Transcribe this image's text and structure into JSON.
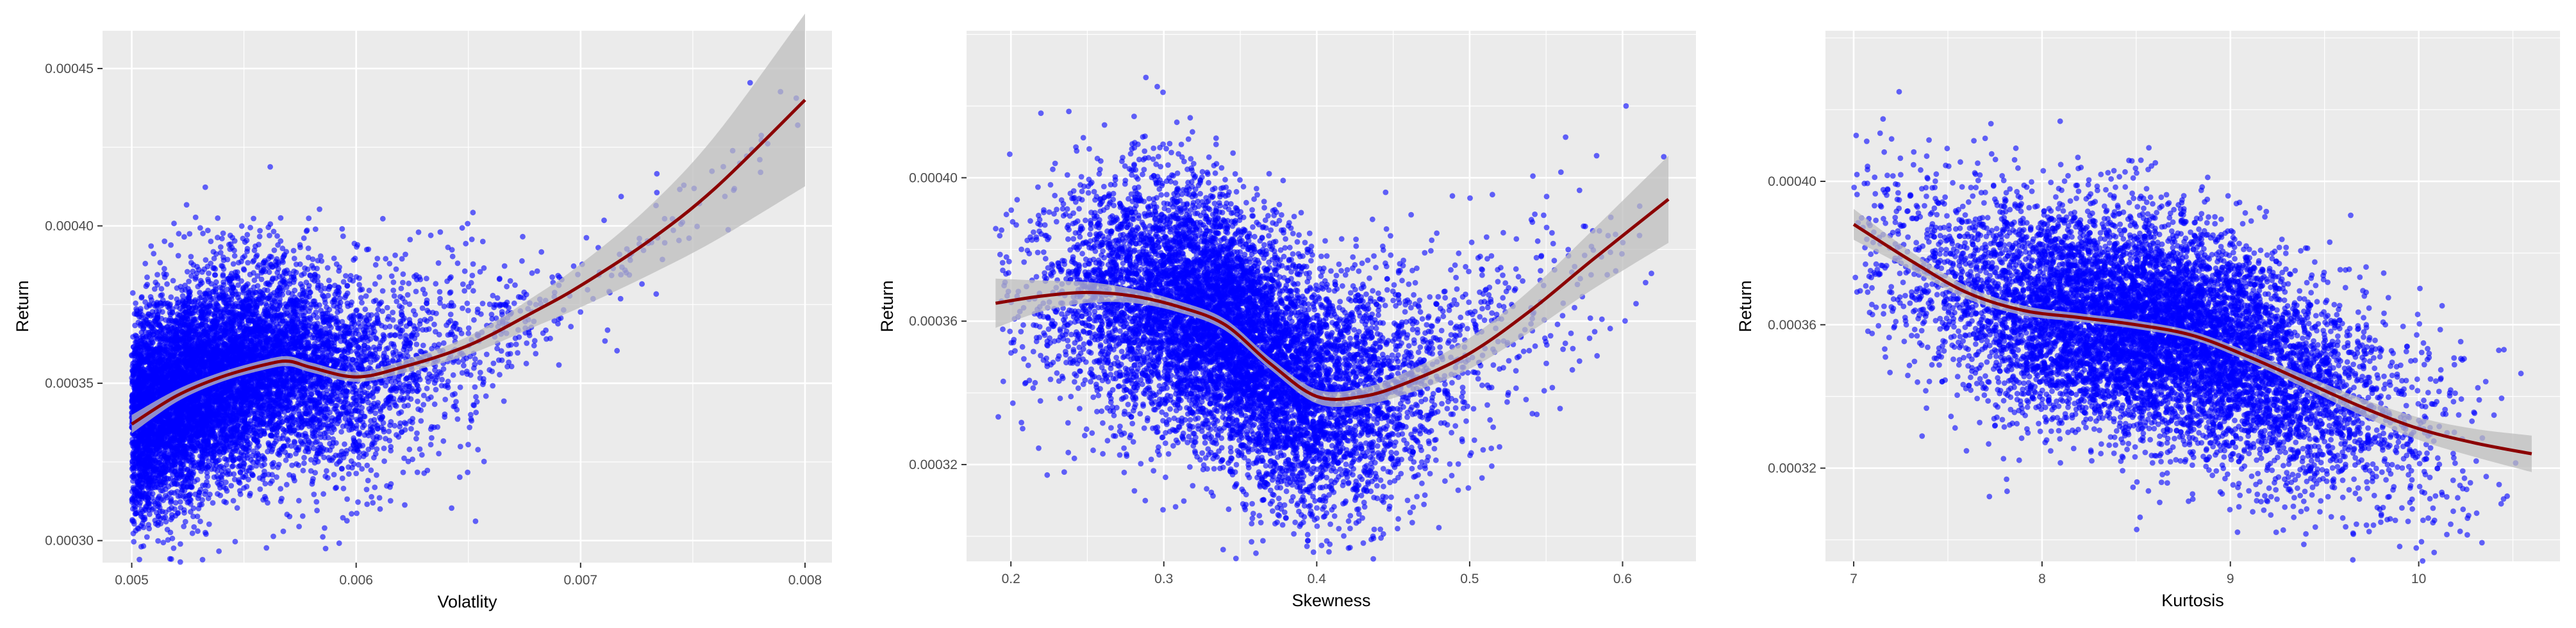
{
  "chart_data": [
    {
      "type": "scatter",
      "title": "",
      "xlabel": "Volatlity",
      "ylabel": "Return",
      "xlim": [
        0.00487,
        0.00812
      ],
      "ylim": [
        0.000293,
        0.000462
      ],
      "x_ticks": [
        0.005,
        0.006,
        0.007,
        0.008
      ],
      "x_tick_labels": [
        "0.005",
        "0.006",
        "0.007",
        "0.008"
      ],
      "y_ticks": [
        0.0003,
        0.00035,
        0.0004,
        0.00045
      ],
      "y_tick_labels": [
        "0.00030",
        "0.00035",
        "0.00040",
        "0.00045"
      ],
      "grid": true,
      "point_color": "#0000ff",
      "smooth_color": "#8b0000",
      "band_color": "#bdbdbd",
      "cloud": {
        "n_points": 9000,
        "x_range": [
          0.005,
          0.008
        ],
        "x_center": 0.00565,
        "y_center": 0.000358,
        "note_source": "dense blue point cloud"
      },
      "smooth": {
        "x": [
          0.005,
          0.0052,
          0.0054,
          0.0056,
          0.0057,
          0.0058,
          0.006,
          0.0062,
          0.0065,
          0.0068,
          0.007,
          0.0073,
          0.0076,
          0.008
        ],
        "y": [
          0.000337,
          0.000346,
          0.000352,
          0.000356,
          0.000357,
          0.000355,
          0.000352,
          0.000355,
          0.000362,
          0.000373,
          0.000381,
          0.000395,
          0.000412,
          0.00044
        ],
        "se": [
          1.5e-06,
          1e-06,
          8e-07,
          8e-07,
          8e-07,
          8e-07,
          8e-07,
          1e-06,
          1.5e-06,
          2.5e-06,
          3.5e-06,
          5.5e-06,
          8.5e-06,
          1.4e-05
        ]
      }
    },
    {
      "type": "scatter",
      "title": "",
      "xlabel": "Skewness",
      "ylabel": "Return",
      "xlim": [
        0.171,
        0.648
      ],
      "ylim": [
        0.000293,
        0.000441
      ],
      "x_ticks": [
        0.2,
        0.3,
        0.4,
        0.5,
        0.6
      ],
      "x_tick_labels": [
        "0.2",
        "0.3",
        "0.4",
        "0.5",
        "0.6"
      ],
      "y_ticks": [
        0.00032,
        0.00036,
        0.0004
      ],
      "y_tick_labels": [
        "0.00032",
        "0.00036",
        "0.00040"
      ],
      "grid": true,
      "point_color": "#0000ff",
      "smooth_color": "#8b0000",
      "band_color": "#bdbdbd",
      "cloud": {
        "n_points": 9000,
        "x_range": [
          0.19,
          0.63
        ],
        "x_center": 0.345,
        "y_center": 0.000358,
        "note_source": "dense blue point cloud"
      },
      "smooth": {
        "x": [
          0.19,
          0.22,
          0.25,
          0.28,
          0.31,
          0.34,
          0.37,
          0.4,
          0.43,
          0.46,
          0.5,
          0.54,
          0.58,
          0.63
        ],
        "y": [
          0.000365,
          0.000367,
          0.000368,
          0.000367,
          0.000364,
          0.000359,
          0.000348,
          0.000339,
          0.000339,
          0.000343,
          0.000351,
          0.000363,
          0.000377,
          0.000394
        ],
        "se": [
          3.5e-06,
          2.2e-06,
          1.5e-06,
          1e-06,
          8e-07,
          8e-07,
          8e-07,
          1e-06,
          1.2e-06,
          1.6e-06,
          2.2e-06,
          3e-06,
          4.2e-06,
          6.2e-06
        ]
      }
    },
    {
      "type": "scatter",
      "title": "",
      "xlabel": "Kurtosis",
      "ylabel": "Return",
      "xlim": [
        6.85,
        10.75
      ],
      "ylim": [
        0.000294,
        0.000442
      ],
      "x_ticks": [
        7,
        8,
        9,
        10
      ],
      "x_tick_labels": [
        "7",
        "8",
        "9",
        "10"
      ],
      "y_ticks": [
        0.00032,
        0.00036,
        0.0004
      ],
      "y_tick_labels": [
        "0.00032",
        "0.00036",
        "0.00040"
      ],
      "grid": true,
      "point_color": "#0000ff",
      "smooth_color": "#8b0000",
      "band_color": "#bdbdbd",
      "cloud": {
        "n_points": 9000,
        "x_range": [
          7.0,
          10.6
        ],
        "x_center": 8.6,
        "y_center": 0.000356,
        "note_source": "dense blue point cloud"
      },
      "smooth": {
        "x": [
          7.0,
          7.3,
          7.6,
          7.9,
          8.2,
          8.5,
          8.8,
          9.1,
          9.4,
          9.7,
          10.0,
          10.3,
          10.6
        ],
        "y": [
          0.000388,
          0.000378,
          0.000369,
          0.000364,
          0.000362,
          0.00036,
          0.000357,
          0.000351,
          0.000344,
          0.000337,
          0.000331,
          0.000327,
          0.000324
        ],
        "se": [
          2.2e-06,
          1.3e-06,
          9e-07,
          7e-07,
          6e-07,
          6e-07,
          6e-07,
          7e-07,
          9e-07,
          1.2e-06,
          1.6e-06,
          2e-06,
          2.6e-06
        ]
      }
    }
  ]
}
